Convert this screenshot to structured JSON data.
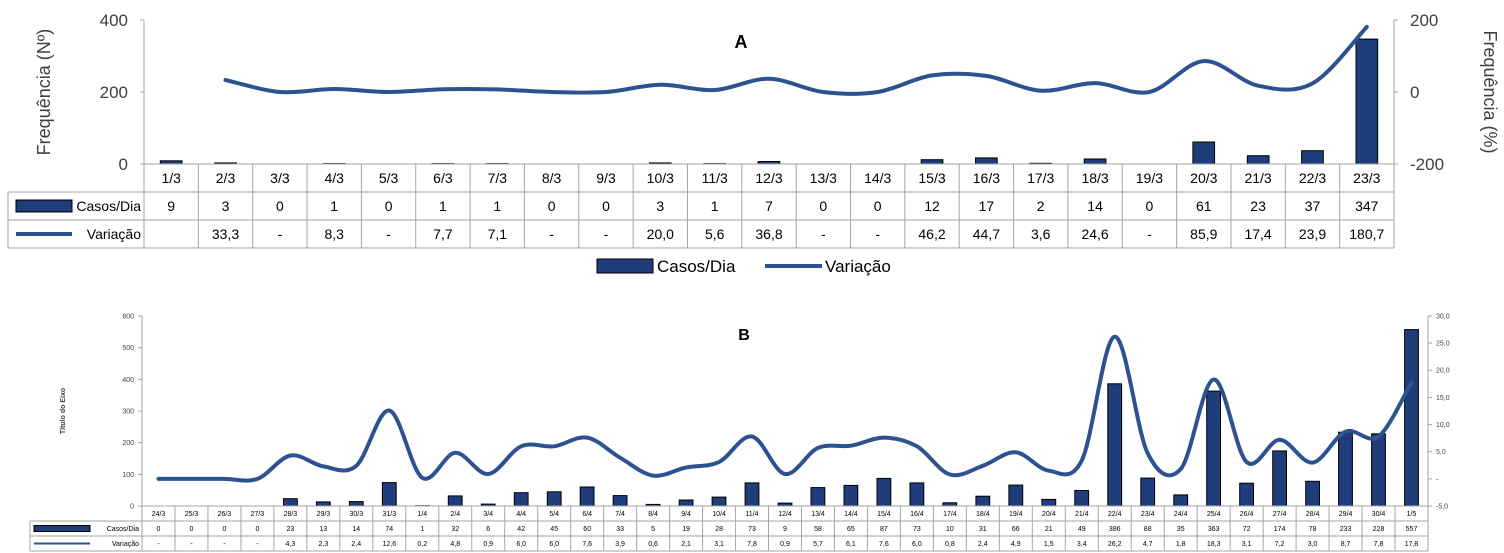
{
  "chart_data": [
    {
      "type": "bar",
      "title": "A",
      "ylabel": "Frequência (Nº)",
      "y2label": "Frequência (%)",
      "ylim": [
        0,
        400
      ],
      "y2lim": [
        -200,
        200
      ],
      "yticks": [
        "0",
        "200",
        "400"
      ],
      "y2ticks": [
        "-200",
        "0",
        "200"
      ],
      "categories": [
        "1/3",
        "2/3",
        "3/3",
        "4/3",
        "5/3",
        "6/3",
        "7/3",
        "8/3",
        "9/3",
        "10/3",
        "11/3",
        "12/3",
        "13/3",
        "14/3",
        "15/3",
        "16/3",
        "17/3",
        "18/3",
        "19/3",
        "20/3",
        "21/3",
        "22/3",
        "23/3"
      ],
      "series": [
        {
          "name": "Casos/Dia",
          "kind": "bar",
          "axis": "left",
          "values": [
            9,
            3,
            0,
            1,
            0,
            1,
            1,
            0,
            0,
            3,
            1,
            7,
            0,
            0,
            12,
            17,
            2,
            14,
            0,
            61,
            23,
            37,
            347
          ],
          "labels": [
            "9",
            "3",
            "0",
            "1",
            "0",
            "1",
            "1",
            "0",
            "0",
            "3",
            "1",
            "7",
            "0",
            "0",
            "12",
            "17",
            "2",
            "14",
            "0",
            "61",
            "23",
            "37",
            "347"
          ]
        },
        {
          "name": "Variação",
          "kind": "line",
          "axis": "right",
          "values": [
            null,
            33.3,
            0,
            8.3,
            0,
            7.7,
            7.1,
            0,
            0,
            20.0,
            5.6,
            36.8,
            0,
            0,
            46.2,
            44.7,
            3.6,
            24.6,
            0,
            85.9,
            17.4,
            23.9,
            180.7
          ],
          "labels": [
            "",
            "33,3",
            "-",
            "8,3",
            "-",
            "7,7",
            "7,1",
            "-",
            "-",
            "20,0",
            "5,6",
            "36,8",
            "-",
            "-",
            "46,2",
            "44,7",
            "3,6",
            "24,6",
            "-",
            "85,9",
            "17,4",
            "23,9",
            "180,7"
          ]
        }
      ],
      "legend": "bottom",
      "colors": {
        "bar": "#1f3d7a",
        "line": "#2c5290"
      }
    },
    {
      "type": "bar",
      "title": "B",
      "ylabel": "Título do Eixo",
      "ylim": [
        0,
        600
      ],
      "y2lim": [
        -5,
        30
      ],
      "yticks": [
        "0",
        "100",
        "200",
        "300",
        "400",
        "500",
        "600"
      ],
      "y2ticks": [
        "-5,0",
        "-",
        "5,0",
        "10,0",
        "15,0",
        "20,0",
        "25,0",
        "30,0"
      ],
      "categories": [
        "24/3",
        "25/3",
        "26/3",
        "27/3",
        "28/3",
        "29/3",
        "30/3",
        "31/3",
        "1/4",
        "2/4",
        "3/4",
        "4/4",
        "5/4",
        "6/4",
        "7/4",
        "8/4",
        "9/4",
        "10/4",
        "11/4",
        "12/4",
        "13/4",
        "14/4",
        "15/4",
        "16/4",
        "17/4",
        "18/4",
        "19/4",
        "20/4",
        "21/4",
        "22/4",
        "23/4",
        "24/4",
        "25/4",
        "26/4",
        "27/4",
        "28/4",
        "29/4",
        "30/4",
        "1/5"
      ],
      "series": [
        {
          "name": "Casos/Dia",
          "kind": "bar",
          "axis": "left",
          "values": [
            0,
            0,
            0,
            0,
            23,
            13,
            14,
            74,
            1,
            32,
            6,
            42,
            45,
            60,
            33,
            5,
            19,
            28,
            73,
            9,
            58,
            65,
            87,
            73,
            10,
            31,
            66,
            21,
            49,
            386,
            88,
            35,
            363,
            72,
            174,
            78,
            233,
            228,
            557
          ],
          "labels": [
            "0",
            "0",
            "0",
            "0",
            "23",
            "13",
            "14",
            "74",
            "1",
            "32",
            "6",
            "42",
            "45",
            "60",
            "33",
            "5",
            "19",
            "28",
            "73",
            "9",
            "58",
            "65",
            "87",
            "73",
            "10",
            "31",
            "66",
            "21",
            "49",
            "386",
            "88",
            "35",
            "363",
            "72",
            "174",
            "78",
            "233",
            "228",
            "557"
          ]
        },
        {
          "name": "Variação",
          "kind": "line",
          "axis": "right",
          "values": [
            0,
            0,
            0,
            0,
            4.3,
            2.3,
            2.4,
            12.6,
            0.2,
            4.8,
            0.9,
            6.0,
            6.0,
            7.6,
            3.9,
            0.6,
            2.1,
            3.1,
            7.8,
            0.9,
            5.7,
            6.1,
            7.6,
            6.0,
            0.8,
            2.4,
            4.9,
            1.5,
            3.4,
            26.2,
            4.7,
            1.8,
            18.3,
            3.1,
            7.2,
            3.0,
            8.7,
            7.8,
            17.8
          ],
          "labels": [
            "-",
            "-",
            "-",
            "-",
            "4,3",
            "2,3",
            "2,4",
            "12,6",
            "0,2",
            "4,8",
            "0,9",
            "6,0",
            "6,0",
            "7,6",
            "3,9",
            "0,6",
            "2,1",
            "3,1",
            "7,8",
            "0,9",
            "5,7",
            "6,1",
            "7,6",
            "6,0",
            "0,8",
            "2,4",
            "4,9",
            "1,5",
            "3,4",
            "26,2",
            "4,7",
            "1,8",
            "18,3",
            "3,1",
            "7,2",
            "3,0",
            "8,7",
            "7,8",
            "17,8"
          ]
        }
      ],
      "colors": {
        "bar": "#1f3d7a",
        "line": "#2c5290"
      }
    }
  ]
}
